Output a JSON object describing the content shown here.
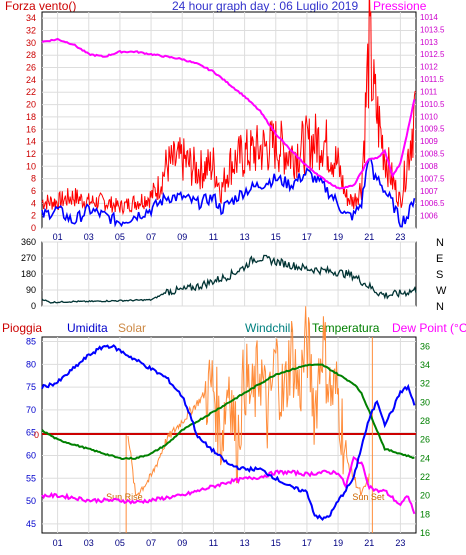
{
  "header": {
    "left_label": "Forza vento()",
    "title": "24 hour graph day : 06 Luglio 2019",
    "right_label": "Pressione"
  },
  "colors": {
    "wind": "#ff0000",
    "gust_blue": "#0000ff",
    "pressure": "#ff00ff",
    "direction": "#003333",
    "humidity": "#0000ff",
    "solar": "#ff8c3a",
    "windchill": "#008080",
    "temperature": "#008000",
    "dewpoint": "#ff00ff",
    "rain": "#cc0000",
    "title": "#3333cc"
  },
  "x_ticks": [
    "01",
    "03",
    "05",
    "07",
    "09",
    "11",
    "13",
    "15",
    "17",
    "19",
    "21",
    "23"
  ],
  "bottom_header": {
    "pioggia": "Pioggia",
    "umidita": "Umidita",
    "solar": "Solar",
    "windchill": "Windchill",
    "temperatura": "Temperatura",
    "dewpoint": "Dew Point (°C)"
  },
  "annotations": {
    "sunrise": "Sun Rise",
    "sunset": "Sun Set",
    "rain_zero": "0"
  },
  "chart_data": [
    {
      "type": "line",
      "name": "wind_pressure",
      "y_left_ticks": [
        "0",
        "2",
        "4",
        "6",
        "8",
        "10",
        "12",
        "14",
        "16",
        "18",
        "20",
        "22",
        "24",
        "26",
        "28",
        "30",
        "32",
        "34"
      ],
      "y_right_ticks": [
        "1006",
        "1006.5",
        "1007",
        "1007.5",
        "1008",
        "1008.5",
        "1009",
        "1009.5",
        "1010",
        "1010.5",
        "1011",
        "1011.5",
        "1012",
        "1012.5",
        "1013",
        "1013.5",
        "1014"
      ],
      "ylim_left": [
        0,
        35
      ],
      "ylim_right": [
        1005.5,
        1014.2
      ],
      "xlim": [
        0,
        24
      ],
      "series": [
        {
          "key": "gust",
          "x": [
            0,
            1,
            2,
            3,
            4,
            5,
            6,
            7,
            7.5,
            8,
            9,
            10,
            11,
            11.5,
            12,
            13,
            14,
            15,
            16,
            17,
            18,
            19,
            19.5,
            20,
            20.5,
            21,
            21.3,
            21.6,
            22,
            22.5,
            23,
            23.5,
            24
          ],
          "y": [
            5,
            5,
            6,
            5,
            5,
            4,
            5,
            6,
            8,
            12,
            13,
            11,
            12,
            7,
            12,
            14,
            15,
            16,
            14,
            16,
            17,
            12,
            6,
            5,
            8,
            35,
            25,
            20,
            14,
            9,
            5,
            14,
            24
          ]
        },
        {
          "key": "speed",
          "x": [
            0,
            1,
            2,
            3,
            4,
            5,
            6,
            7,
            7.5,
            8,
            9,
            10,
            11,
            11.5,
            12,
            13,
            14,
            15,
            16,
            17,
            18,
            19,
            19.5,
            20,
            20.5,
            21,
            21.3,
            21.6,
            22,
            22.5,
            23,
            23.5,
            24
          ],
          "y": [
            2,
            3,
            1,
            3,
            2,
            1,
            2,
            3,
            4,
            5,
            5,
            4,
            5,
            3,
            4,
            6,
            7,
            8,
            7,
            9,
            7,
            4,
            2,
            2,
            4,
            12,
            8,
            8,
            6,
            4,
            1,
            2,
            6
          ]
        },
        {
          "key": "pressure",
          "x": [
            0,
            1,
            2,
            3,
            4,
            5,
            6,
            7,
            8,
            9,
            10,
            11,
            12,
            13,
            14,
            15,
            16,
            17,
            18,
            19,
            20,
            21,
            21.5,
            22,
            22.5,
            23,
            23.5,
            24
          ],
          "y": [
            1013.0,
            1013.1,
            1012.9,
            1012.5,
            1012.4,
            1012.6,
            1012.6,
            1012.5,
            1012.4,
            1012.3,
            1012.1,
            1011.8,
            1011.3,
            1010.8,
            1010.2,
            1009.3,
            1008.6,
            1008.0,
            1007.5,
            1007.1,
            1007.2,
            1008.3,
            1008.3,
            1008.6,
            1007.6,
            1008.1,
            1009.5,
            1011.0
          ]
        }
      ]
    },
    {
      "type": "line",
      "name": "wind_direction",
      "y_ticks": [
        "0",
        "90",
        "180",
        "270",
        "360"
      ],
      "y_right_labels": [
        "N",
        "W",
        "S",
        "E",
        "N"
      ],
      "ylim": [
        0,
        360
      ],
      "xlim": [
        0,
        24
      ],
      "series": [
        {
          "key": "direction",
          "x": [
            0,
            0.5,
            1,
            2,
            3,
            4,
            5,
            6,
            7,
            7.5,
            8,
            9,
            10,
            11,
            12,
            13,
            13.5,
            14,
            15,
            16,
            17,
            18,
            19,
            20,
            21,
            21.5,
            22,
            23,
            24
          ],
          "y": [
            40,
            20,
            22,
            25,
            25,
            28,
            30,
            32,
            35,
            55,
            80,
            90,
            110,
            140,
            170,
            220,
            260,
            270,
            250,
            230,
            210,
            200,
            190,
            170,
            110,
            80,
            60,
            70,
            90
          ]
        }
      ]
    },
    {
      "type": "line",
      "name": "temperature_humidity",
      "y_left_ticks": [
        "45",
        "50",
        "55",
        "60",
        "65",
        "70",
        "75",
        "80",
        "85"
      ],
      "y_right_ticks": [
        "16",
        "18",
        "20",
        "22",
        "24",
        "26",
        "28",
        "30",
        "32",
        "34",
        "36"
      ],
      "ylim_left": [
        43,
        86
      ],
      "ylim_right": [
        16,
        37
      ],
      "xlim": [
        0,
        24
      ],
      "series": [
        {
          "key": "humidity",
          "x": [
            0,
            1,
            2,
            3,
            4,
            4.5,
            5,
            6,
            7,
            8,
            8.5,
            9,
            9.5,
            10,
            11,
            12,
            13,
            14,
            15,
            16,
            17,
            17.5,
            18,
            18.5,
            19,
            20,
            20.5,
            21,
            21.5,
            22,
            22.5,
            23,
            23.5,
            24
          ],
          "y": [
            75,
            76,
            79,
            82,
            84,
            84,
            83,
            81,
            79,
            77,
            75,
            73,
            69,
            64,
            61,
            58,
            57,
            57,
            55,
            53,
            52,
            47,
            46,
            47,
            50,
            55,
            62,
            68,
            72,
            67,
            70,
            74,
            75,
            70
          ]
        },
        {
          "key": "temperature",
          "x": [
            0,
            1,
            2,
            3,
            4,
            5,
            6,
            7,
            8,
            9,
            10,
            11,
            12,
            13,
            14,
            15,
            16,
            17,
            18,
            18.5,
            19,
            20,
            20.5,
            21,
            22,
            23,
            24
          ],
          "y": [
            27,
            26,
            25.5,
            25,
            24.5,
            24,
            24,
            24.5,
            25.5,
            27,
            28,
            29,
            30,
            31,
            32,
            33,
            33.5,
            34,
            34,
            33.5,
            33,
            32,
            31,
            29,
            25,
            24.5,
            24
          ]
        },
        {
          "key": "dewpoint",
          "x": [
            0,
            1,
            2,
            3,
            4,
            5,
            6,
            7,
            8,
            9,
            10,
            11,
            12,
            13,
            14,
            15,
            16,
            17,
            18,
            19,
            19.5,
            20,
            20.5,
            21,
            21.5,
            22,
            23,
            23.5,
            24
          ],
          "y": [
            20,
            20,
            19.8,
            19.5,
            19.5,
            19.5,
            19.3,
            19.5,
            19.8,
            20,
            20.5,
            21,
            21.5,
            21.8,
            22,
            22.5,
            22.5,
            22.3,
            22.5,
            22.5,
            21,
            24,
            23.5,
            21,
            20.5,
            20.5,
            19,
            20,
            17.5
          ]
        },
        {
          "key": "solar",
          "x": [
            0,
            5,
            5.5,
            6,
            7,
            8,
            9,
            10,
            10.5,
            11,
            11.5,
            12,
            12.5,
            13,
            13.5,
            14,
            14.5,
            15,
            15.5,
            16,
            16.5,
            17,
            17.5,
            18,
            18.5,
            19,
            19.5,
            20,
            20.5,
            21,
            21.5,
            24
          ],
          "y": [
            null,
            null,
            27,
            20,
            22,
            26,
            28,
            30,
            31,
            32,
            26,
            33,
            25,
            33,
            30,
            34,
            28,
            35,
            30,
            36,
            31,
            37,
            29,
            37,
            31,
            31,
            24,
            22,
            20,
            22,
            null,
            null
          ]
        }
      ]
    }
  ]
}
